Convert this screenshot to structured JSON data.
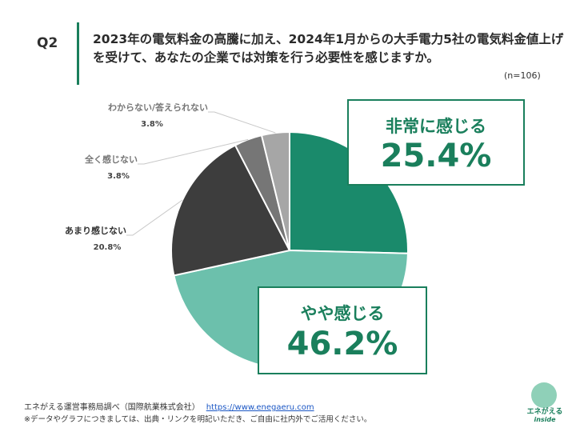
{
  "question": {
    "label": "Q2",
    "text": "2023年の電気料金の高騰に加え、2024年1月からの大手電力5社の電気料金値上げを受けて、あなたの企業では対策を行う必要性を感じますか。",
    "n": "(n=106)"
  },
  "chart_data": {
    "type": "pie",
    "title": "",
    "slices": [
      {
        "label": "非常に感じる",
        "value": 25.4,
        "display": "25.4%",
        "color": "#1a8a6b"
      },
      {
        "label": "やや感じる",
        "value": 46.2,
        "display": "46.2%",
        "color": "#6cc0ac"
      },
      {
        "label": "あまり感じない",
        "value": 20.8,
        "display": "20.8%",
        "color": "#3d3d3d"
      },
      {
        "label": "全く感じない",
        "value": 3.8,
        "display": "3.8%",
        "color": "#767676"
      },
      {
        "label": "わからない/答えられない",
        "value": 3.8,
        "display": "3.8%",
        "color": "#a6a6a6"
      }
    ]
  },
  "footer": {
    "source": "エネがえる運営事務局調べ（国際航業株式会社）",
    "url": "https://www.enegaeru.com",
    "note": "※データやグラフにつきましては、出典・リンクを明記いただき、ご自由に社内外でご活用ください。"
  },
  "logo": {
    "name": "エネがえる",
    "sub": "inside"
  }
}
